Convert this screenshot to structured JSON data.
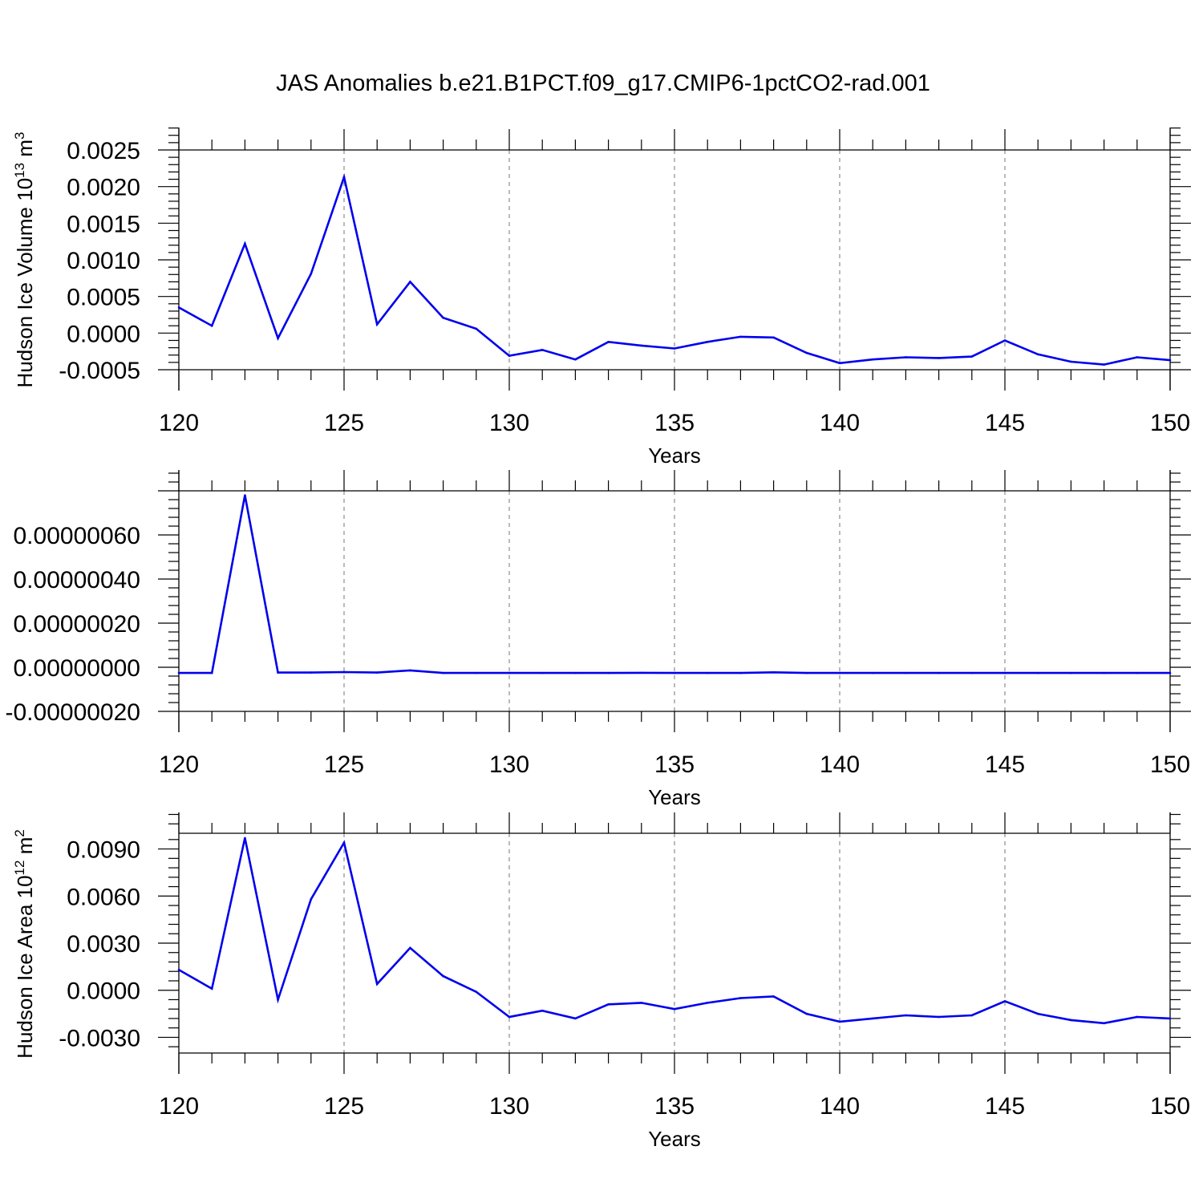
{
  "title": "JAS Anomalies b.e21.B1PCT.f09_g17.CMIP6-1pctCO2-rad.001",
  "colors": {
    "line": "#0000ee",
    "grid": "#8c8c8c",
    "axis": "#000000"
  },
  "chart_data": [
    {
      "type": "line",
      "xlabel": "Years",
      "ylabel": "Hudson Ice Volume 10",
      "ylabel_exp": "13",
      "ylabel_unit": " m",
      "ylabel_unit_exp": "3",
      "xlim": [
        120,
        150
      ],
      "ylim": [
        -0.0005,
        0.0025
      ],
      "grid": "vertical dashed",
      "x_ticks": [
        "120",
        "125",
        "130",
        "135",
        "140",
        "145",
        "150"
      ],
      "y_ticks": [
        "-0.0005",
        "0.0000",
        "0.0005",
        "0.0010",
        "0.0015",
        "0.0020",
        "0.0025"
      ],
      "x": [
        120,
        121,
        122,
        123,
        124,
        125,
        126,
        127,
        128,
        129,
        130,
        131,
        132,
        133,
        134,
        135,
        136,
        137,
        138,
        139,
        140,
        141,
        142,
        143,
        144,
        145,
        146,
        147,
        148,
        149,
        150
      ],
      "values": [
        0.00035,
        0.0001,
        0.00122,
        -7e-05,
        0.00081,
        0.00213,
        0.00012,
        0.0007,
        0.00021,
        6e-05,
        -0.00031,
        -0.00023,
        -0.00036,
        -0.00012,
        -0.00017,
        -0.00021,
        -0.00012,
        -5e-05,
        -6e-05,
        -0.00027,
        -0.00041,
        -0.00036,
        -0.00033,
        -0.00034,
        -0.00032,
        -0.0001,
        -0.00029,
        -0.00039,
        -0.00043,
        -0.00033,
        -0.00037
      ]
    },
    {
      "type": "line",
      "xlabel": "Years",
      "ylabel": "",
      "xlim": [
        120,
        150
      ],
      "ylim": [
        -2e-07,
        8e-07
      ],
      "grid": "vertical dashed",
      "x_ticks": [
        "120",
        "125",
        "130",
        "135",
        "140",
        "145",
        "150"
      ],
      "y_ticks": [
        "-0.00000020",
        "0.00000000",
        "0.00000020",
        "0.00000040",
        "0.00000060"
      ],
      "x": [
        120,
        121,
        122,
        123,
        124,
        125,
        126,
        127,
        128,
        129,
        130,
        131,
        132,
        133,
        134,
        135,
        136,
        137,
        138,
        139,
        140,
        141,
        142,
        143,
        144,
        145,
        146,
        147,
        148,
        149,
        150
      ],
      "values": [
        -2.6e-08,
        -2.6e-08,
        7.8e-07,
        -2.4e-08,
        -2.4e-08,
        -2.2e-08,
        -2.4e-08,
        -1.4e-08,
        -2.6e-08,
        -2.6e-08,
        -2.6e-08,
        -2.6e-08,
        -2.6e-08,
        -2.6e-08,
        -2.5e-08,
        -2.6e-08,
        -2.6e-08,
        -2.6e-08,
        -2.3e-08,
        -2.6e-08,
        -2.6e-08,
        -2.6e-08,
        -2.6e-08,
        -2.6e-08,
        -2.6e-08,
        -2.6e-08,
        -2.6e-08,
        -2.6e-08,
        -2.6e-08,
        -2.6e-08,
        -2.6e-08
      ]
    },
    {
      "type": "line",
      "xlabel": "Years",
      "ylabel": "Hudson Ice Area 10",
      "ylabel_exp": "12",
      "ylabel_unit": " m",
      "ylabel_unit_exp": "2",
      "xlim": [
        120,
        150
      ],
      "ylim": [
        -0.004,
        0.01
      ],
      "grid": "vertical dashed",
      "x_ticks": [
        "120",
        "125",
        "130",
        "135",
        "140",
        "145",
        "150"
      ],
      "y_ticks": [
        "-0.0030",
        "0.0000",
        "0.0030",
        "0.0060",
        "0.0090"
      ],
      "x": [
        120,
        121,
        122,
        123,
        124,
        125,
        126,
        127,
        128,
        129,
        130,
        131,
        132,
        133,
        134,
        135,
        136,
        137,
        138,
        139,
        140,
        141,
        142,
        143,
        144,
        145,
        146,
        147,
        148,
        149,
        150
      ],
      "values": [
        0.0013,
        0.0001,
        0.0097,
        -0.0006,
        0.0058,
        0.0094,
        0.0004,
        0.0027,
        0.0009,
        -0.0001,
        -0.0017,
        -0.0013,
        -0.0018,
        -0.0009,
        -0.0008,
        -0.0012,
        -0.0008,
        -0.0005,
        -0.0004,
        -0.0015,
        -0.002,
        -0.0018,
        -0.0016,
        -0.0017,
        -0.0016,
        -0.0007,
        -0.0015,
        -0.0019,
        -0.0021,
        -0.0017,
        -0.0018
      ]
    }
  ]
}
